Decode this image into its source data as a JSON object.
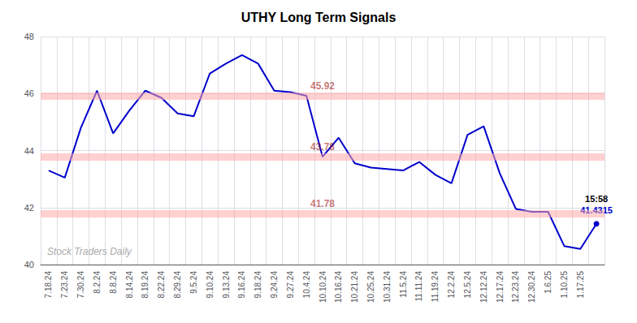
{
  "chart_data": {
    "type": "line",
    "title": "UTHY Long Term Signals",
    "categories": [
      "7.18.24",
      "7.23.24",
      "7.30.24",
      "8.2.24",
      "8.8.24",
      "8.14.24",
      "8.19.24",
      "8.22.24",
      "8.29.24",
      "9.5.24",
      "9.10.24",
      "9.13.24",
      "9.16.24",
      "9.18.24",
      "9.24.24",
      "9.27.24",
      "10.4.24",
      "10.10.24",
      "10.16.24",
      "10.21.24",
      "10.25.24",
      "10.31.24",
      "11.5.24",
      "11.11.24",
      "11.19.24",
      "12.2.24",
      "12.5.24",
      "12.12.24",
      "12.17.24",
      "12.23.24",
      "12.30.24",
      "1.6.25",
      "1.10.25",
      "1.17.25",
      null
    ],
    "values": [
      43.3,
      43.05,
      44.8,
      46.1,
      44.6,
      45.4,
      46.1,
      45.85,
      45.3,
      45.2,
      46.7,
      47.05,
      47.35,
      47.05,
      46.1,
      46.05,
      45.92,
      43.78,
      44.45,
      43.55,
      43.4,
      43.35,
      43.3,
      43.6,
      43.15,
      42.85,
      44.55,
      44.85,
      43.2,
      41.95,
      41.85,
      41.85,
      40.65,
      40.55,
      41.4315
    ],
    "color": "#0000cc",
    "ylim": [
      40,
      48
    ],
    "yticks": [
      40,
      42,
      44,
      46,
      48
    ],
    "grid": true,
    "hlines": [
      {
        "value": 45.92,
        "label": "45.92"
      },
      {
        "value": 43.78,
        "label": "43.78"
      },
      {
        "value": 41.78,
        "label": "41.78"
      }
    ],
    "hline_color": "#ffaaaa",
    "hline_label_color": "#990000",
    "last_point": {
      "label": "15:58",
      "value_label": "41.4315",
      "label_color": "#000000",
      "value_label_color": "#0000cc"
    },
    "watermark": "Stock Traders Daily",
    "watermark_color": "#aaaaaa"
  }
}
